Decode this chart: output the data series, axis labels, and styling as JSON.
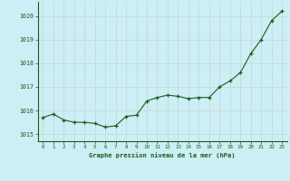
{
  "x": [
    0,
    1,
    2,
    3,
    4,
    5,
    6,
    7,
    8,
    9,
    10,
    11,
    12,
    13,
    14,
    15,
    16,
    17,
    18,
    19,
    20,
    21,
    22,
    23
  ],
  "y": [
    1015.7,
    1015.85,
    1015.6,
    1015.5,
    1015.5,
    1015.45,
    1015.3,
    1015.35,
    1015.75,
    1015.8,
    1016.4,
    1016.55,
    1016.65,
    1016.6,
    1016.5,
    1016.55,
    1016.55,
    1017.0,
    1017.25,
    1017.6,
    1018.4,
    1019.0,
    1019.8,
    1020.2
  ],
  "line_color": "#1a5c1a",
  "marker": "+",
  "bg_color": "#cceef5",
  "grid_color": "#c8d8d8",
  "title": "Graphe pression niveau de la mer (hPa)",
  "title_color": "#1a5c1a",
  "ylabel_ticks": [
    1015,
    1016,
    1017,
    1018,
    1019,
    1020
  ],
  "xlabel_ticks": [
    0,
    1,
    2,
    3,
    4,
    5,
    6,
    7,
    8,
    9,
    10,
    11,
    12,
    13,
    14,
    15,
    16,
    17,
    18,
    19,
    20,
    21,
    22,
    23
  ],
  "ylim": [
    1014.7,
    1020.6
  ],
  "xlim": [
    -0.5,
    23.5
  ],
  "tick_color": "#1a5c1a",
  "spine_color": "#1a5c1a",
  "fig_width": 3.2,
  "fig_height": 2.0,
  "dpi": 100
}
